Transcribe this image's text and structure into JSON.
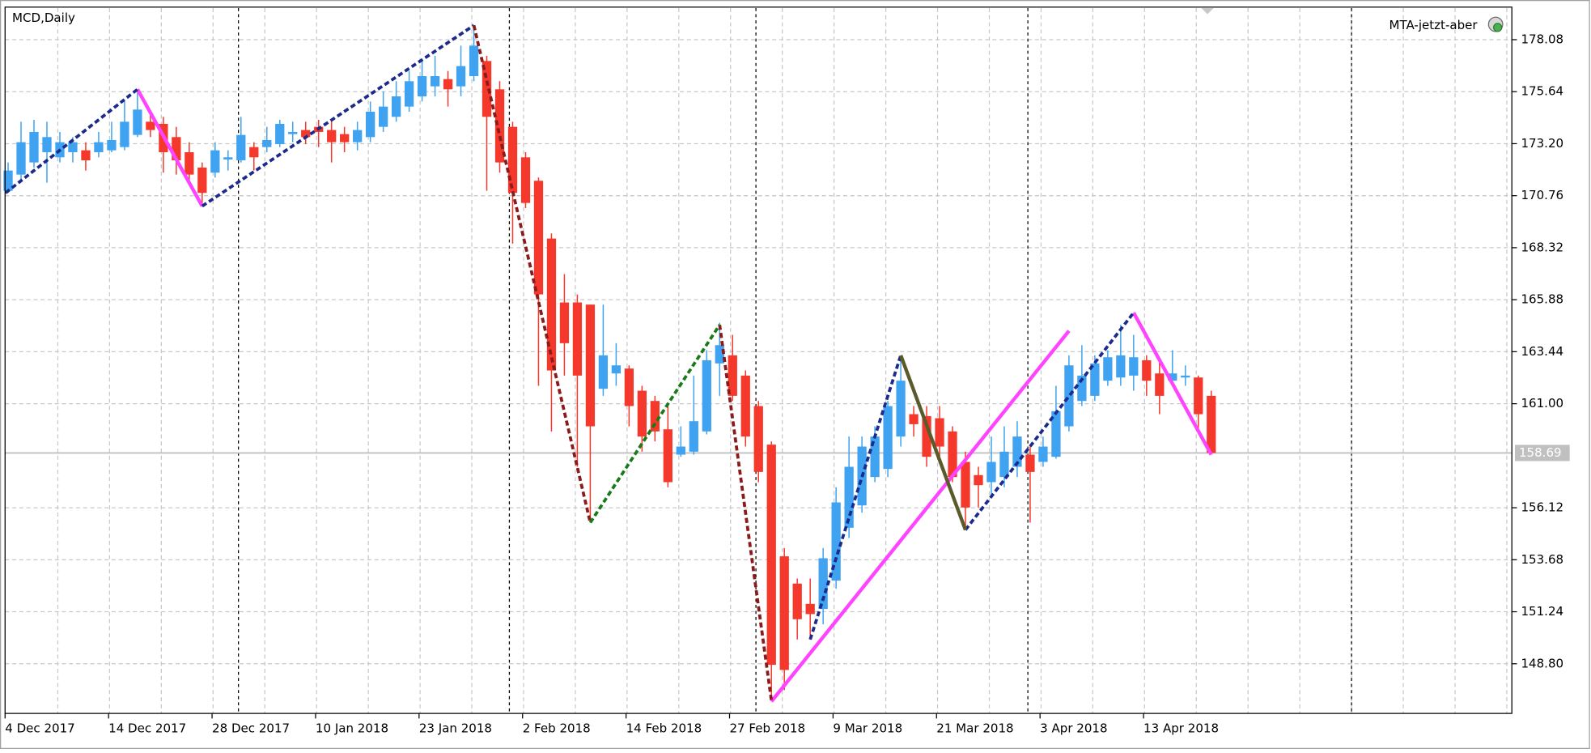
{
  "chart_data": {
    "type": "candlestick",
    "title": "MCD,Daily",
    "indicator_label": "MTA-jetzt-aber",
    "categories": [
      "4 Dec 2017",
      null,
      null,
      null,
      null,
      null,
      null,
      null,
      "14 Dec 2017",
      null,
      null,
      null,
      null,
      null,
      null,
      null,
      "28 Dec 2017",
      null,
      null,
      null,
      null,
      null,
      null,
      null,
      "10 Jan 2018",
      null,
      null,
      null,
      null,
      null,
      null,
      null,
      "23 Jan 2018",
      null,
      null,
      null,
      null,
      null,
      null,
      null,
      "2 Feb 2018",
      null,
      null,
      null,
      null,
      null,
      null,
      null,
      "14 Feb 2018",
      null,
      null,
      null,
      null,
      null,
      null,
      null,
      "27 Feb 2018",
      null,
      null,
      null,
      null,
      null,
      null,
      null,
      "9 Mar 2018",
      null,
      null,
      null,
      null,
      null,
      null,
      null,
      "21 Mar 2018",
      null,
      null,
      null,
      null,
      null,
      null,
      null,
      "3 Apr 2018",
      null,
      null,
      null,
      null,
      null,
      null,
      null,
      "13 Apr 2018",
      null,
      null,
      null,
      null,
      null
    ],
    "open": [
      170.99,
      171.75,
      172.32,
      172.8,
      172.56,
      172.8,
      172.89,
      172.8,
      172.89,
      173.04,
      173.61,
      174.23,
      174.13,
      173.51,
      172.8,
      172.08,
      171.84,
      172.46,
      172.42,
      173.04,
      173.04,
      173.18,
      173.65,
      173.84,
      173.99,
      173.84,
      173.65,
      173.27,
      173.51,
      173.99,
      174.46,
      174.94,
      175.42,
      175.89,
      176.23,
      175.89,
      176.37,
      177.08,
      175.75,
      173.99,
      172.56,
      171.46,
      168.75,
      165.75,
      165.75,
      165.65,
      161.7,
      162.42,
      162.65,
      161.61,
      161.13,
      159.8,
      158.61,
      158.75,
      159.7,
      162.89,
      163.27,
      162.32,
      160.89,
      159.08,
      153.84,
      152.56,
      151.61,
      151.37,
      152.7,
      155.18,
      156.23,
      157.56,
      157.94,
      159.46,
      160.51,
      160.42,
      160.32,
      159.7,
      158.27,
      157.65,
      157.32,
      157.56,
      158.04,
      158.61,
      158.27,
      158.51,
      159.94,
      161.13,
      161.37,
      162.08,
      162.23,
      162.32,
      163.04,
      162.42,
      162.08,
      162.23,
      162.23,
      161.37
    ],
    "high": [
      172.32,
      174.23,
      174.32,
      174.23,
      173.75,
      173.51,
      173.27,
      173.75,
      174.23,
      175.18,
      175.75,
      174.7,
      174.46,
      173.99,
      173.27,
      172.32,
      173.27,
      172.89,
      174.46,
      173.27,
      173.99,
      174.32,
      174.23,
      174.23,
      174.32,
      174.32,
      173.99,
      174.23,
      175.18,
      175.65,
      176.13,
      176.61,
      177.08,
      177.32,
      176.61,
      177.8,
      178.61,
      177.32,
      176.13,
      174.23,
      172.8,
      171.61,
      168.99,
      167.08,
      166.13,
      165.65,
      165.65,
      163.84,
      162.8,
      161.84,
      161.37,
      160.89,
      159.94,
      162.32,
      163.51,
      164.8,
      164.23,
      162.56,
      161.13,
      159.23,
      154.23,
      152.8,
      152.8,
      154.23,
      157.08,
      159.46,
      159.46,
      159.94,
      161.13,
      163.04,
      160.89,
      160.89,
      160.89,
      159.94,
      158.75,
      158.04,
      159.46,
      159.94,
      160.18,
      158.99,
      159.46,
      161.84,
      163.27,
      163.75,
      163.27,
      163.51,
      164.7,
      164.23,
      163.27,
      163.04,
      163.51,
      162.8,
      162.32,
      161.61
    ],
    "low": [
      170.89,
      171.46,
      172.08,
      171.37,
      172.32,
      172.32,
      171.94,
      172.56,
      172.8,
      172.89,
      173.51,
      173.51,
      171.84,
      171.75,
      171.46,
      170.27,
      171.61,
      171.94,
      172.32,
      171.94,
      172.8,
      173.04,
      173.27,
      173.18,
      173.04,
      172.32,
      172.8,
      172.89,
      173.27,
      173.75,
      174.23,
      174.7,
      175.18,
      175.42,
      174.94,
      175.42,
      176.13,
      170.99,
      171.84,
      168.51,
      170.18,
      161.84,
      159.7,
      162.32,
      158.04,
      155.42,
      161.37,
      161.84,
      159.94,
      158.75,
      159.23,
      157.08,
      158.51,
      158.61,
      159.56,
      161.37,
      161.13,
      158.99,
      157.32,
      147.08,
      147.56,
      149.94,
      149.94,
      150.65,
      152.32,
      154.7,
      155.89,
      157.32,
      157.56,
      158.99,
      159.46,
      158.04,
      158.51,
      157.32,
      155.18,
      156.13,
      156.61,
      157.08,
      157.56,
      155.42,
      158.04,
      158.42,
      159.7,
      160.89,
      161.13,
      161.84,
      161.84,
      161.61,
      161.37,
      160.51,
      161.84,
      161.84,
      159.7,
      158.61
    ],
    "close": [
      171.94,
      173.27,
      173.75,
      173.51,
      173.27,
      173.27,
      172.42,
      173.27,
      173.37,
      174.23,
      174.8,
      173.84,
      172.8,
      172.42,
      171.75,
      170.89,
      172.89,
      172.56,
      173.61,
      172.56,
      173.37,
      174.13,
      173.75,
      173.51,
      173.75,
      173.27,
      173.27,
      173.84,
      174.7,
      174.94,
      175.42,
      176.13,
      176.37,
      176.37,
      175.75,
      176.84,
      177.8,
      174.46,
      172.32,
      170.89,
      170.42,
      166.13,
      162.56,
      163.84,
      162.32,
      159.94,
      163.27,
      162.8,
      160.89,
      159.46,
      159.7,
      157.32,
      158.99,
      160.18,
      163.04,
      163.75,
      161.37,
      159.46,
      157.8,
      148.75,
      148.51,
      150.89,
      151.13,
      153.75,
      156.37,
      158.04,
      158.99,
      159.46,
      160.89,
      162.08,
      160.04,
      158.51,
      158.99,
      157.56,
      156.13,
      157.18,
      158.27,
      158.75,
      159.46,
      157.8,
      158.99,
      160.65,
      162.8,
      162.32,
      162.89,
      163.18,
      163.27,
      163.18,
      162.08,
      161.37,
      162.42,
      162.32,
      160.51,
      158.69
    ],
    "up_color": "#3fa3f2",
    "down_color": "#f5382c",
    "ylim": [
      146.47,
      179.56
    ],
    "yticks": [
      178.08,
      175.64,
      {
        "value": 173.2,
        "label": "173.20"
      },
      170.76,
      168.32,
      165.88,
      163.44,
      {
        "value": 161,
        "label": "161.00"
      },
      156.12,
      153.68,
      151.24,
      {
        "value": 148.8,
        "label": "148.80"
      }
    ],
    "grid": true,
    "current_price": 158.69,
    "overlays": [
      {
        "color": "#ff44ff",
        "dashed": false,
        "x": [
          10,
          15
        ],
        "values": [
          175.75,
          170.27
        ]
      },
      {
        "color": "#ff44ff",
        "dashed": false,
        "x": [
          59,
          82
        ],
        "values": [
          147.03,
          164.42
        ]
      },
      {
        "color": "#ff44ff",
        "dashed": false,
        "x": [
          87,
          93
        ],
        "values": [
          165.27,
          158.61
        ]
      },
      {
        "color": "#1c2a8c",
        "dashed": true,
        "x": [
          -0.2,
          10
        ],
        "values": [
          170.89,
          175.75
        ]
      },
      {
        "color": "#1c2a8c",
        "dashed": true,
        "x": [
          15,
          36
        ],
        "values": [
          170.27,
          178.75
        ]
      },
      {
        "color": "#1c2a8c",
        "dashed": true,
        "x": [
          62,
          69
        ],
        "values": [
          149.94,
          163.27
        ]
      },
      {
        "color": "#1c2a8c",
        "dashed": true,
        "x": [
          74,
          87
        ],
        "values": [
          155.08,
          165.27
        ]
      },
      {
        "color": "#8b1a1a",
        "dashed": true,
        "x": [
          36,
          45
        ],
        "values": [
          178.75,
          155.42
        ]
      },
      {
        "color": "#8b1a1a",
        "dashed": true,
        "x": [
          55,
          59
        ],
        "values": [
          164.7,
          147.08
        ]
      },
      {
        "color": "#1a7a1a",
        "dashed": true,
        "x": [
          45,
          55
        ],
        "values": [
          155.42,
          164.7
        ]
      },
      {
        "color": "#5a5a2a",
        "dashed": false,
        "x": [
          69,
          74
        ],
        "values": [
          163.27,
          155.08
        ]
      }
    ]
  }
}
